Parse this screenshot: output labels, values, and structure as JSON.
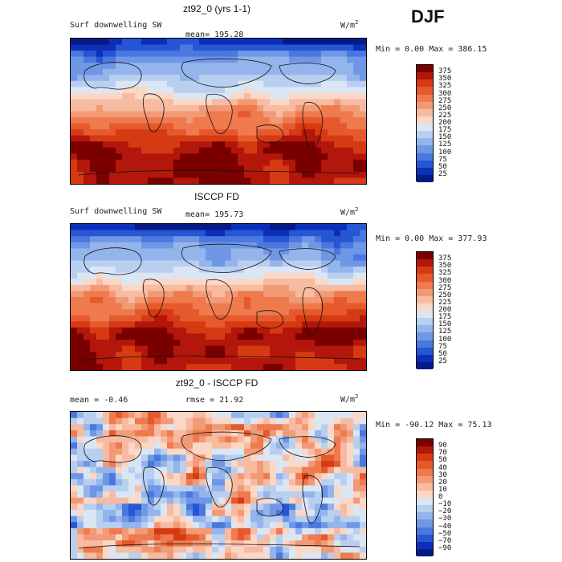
{
  "season": "DJF",
  "panels": [
    {
      "title": "zt92_0 (yrs 1-1)",
      "variable": "Surf downwelling SW",
      "stat1": "mean=  195.28",
      "stat2": "",
      "units_base": "W/m",
      "units_sup": "2",
      "minmax": "Min =    0.00 Max = 386.15",
      "field": "model",
      "colorbar": {
        "labels": [
          "375",
          "350",
          "325",
          "300",
          "275",
          "250",
          "225",
          "200",
          "175",
          "150",
          "125",
          "100",
          "75",
          "50",
          "25"
        ],
        "colors": [
          "#7a0000",
          "#b3160a",
          "#d53a12",
          "#e45a2c",
          "#ee7a4e",
          "#f29a76",
          "#f7bba2",
          "#fbd7c5",
          "#dbe6f5",
          "#b9cff0",
          "#94b4ec",
          "#6f97e6",
          "#4a78df",
          "#2656d4",
          "#0c2fb9",
          "#061a86"
        ]
      }
    },
    {
      "title": "ISCCP FD",
      "variable": "Surf downwelling SW",
      "stat1": "mean=  195.73",
      "stat2": "",
      "units_base": "W/m",
      "units_sup": "2",
      "minmax": "Min =    0.00 Max = 377.93",
      "field": "obs",
      "colorbar": {
        "labels": [
          "375",
          "350",
          "325",
          "300",
          "275",
          "250",
          "225",
          "200",
          "175",
          "150",
          "125",
          "100",
          "75",
          "50",
          "25"
        ],
        "colors": [
          "#7a0000",
          "#b3160a",
          "#d53a12",
          "#e45a2c",
          "#ee7a4e",
          "#f29a76",
          "#f7bba2",
          "#fbd7c5",
          "#dbe6f5",
          "#b9cff0",
          "#94b4ec",
          "#6f97e6",
          "#4a78df",
          "#2656d4",
          "#0c2fb9",
          "#061a86"
        ]
      }
    },
    {
      "title": "zt92_0 - ISCCP FD",
      "variable": "",
      "stat1": "mean =   -0.46",
      "stat2": "rmse =   21.92",
      "units_base": "W/m",
      "units_sup": "2",
      "minmax": "Min = -90.12  Max =  75.13",
      "field": "diff",
      "colorbar": {
        "labels": [
          "90",
          "70",
          "50",
          "40",
          "30",
          "20",
          "10",
          "0",
          "−10",
          "−20",
          "−30",
          "−40",
          "−50",
          "−70",
          "−90"
        ],
        "colors": [
          "#7a0000",
          "#b3160a",
          "#d53a12",
          "#e45a2c",
          "#ee7a4e",
          "#f29a76",
          "#f7bba2",
          "#fbd7c5",
          "#dbe6f5",
          "#b9cff0",
          "#94b4ec",
          "#6f97e6",
          "#4a78df",
          "#2656d4",
          "#0c2fb9",
          "#061a86"
        ]
      }
    }
  ],
  "chart_data": [
    {
      "type": "heatmap",
      "title": "zt92_0 (yrs 1-1)",
      "subtitle": "Surf downwelling SW",
      "units": "W/m2",
      "mean": 195.28,
      "min": 0.0,
      "max": 386.15,
      "contour_levels": [
        25,
        50,
        75,
        100,
        125,
        150,
        175,
        200,
        225,
        250,
        275,
        300,
        325,
        350,
        375
      ]
    },
    {
      "type": "heatmap",
      "title": "ISCCP FD",
      "subtitle": "Surf downwelling SW",
      "units": "W/m2",
      "mean": 195.73,
      "min": 0.0,
      "max": 377.93,
      "contour_levels": [
        25,
        50,
        75,
        100,
        125,
        150,
        175,
        200,
        225,
        250,
        275,
        300,
        325,
        350,
        375
      ]
    },
    {
      "type": "heatmap",
      "title": "zt92_0 - ISCCP FD",
      "units": "W/m2",
      "mean": -0.46,
      "rmse": 21.92,
      "min": -90.12,
      "max": 75.13,
      "contour_levels": [
        -90,
        -70,
        -50,
        -40,
        -30,
        -20,
        -10,
        0,
        10,
        20,
        30,
        40,
        50,
        70,
        90
      ]
    }
  ]
}
